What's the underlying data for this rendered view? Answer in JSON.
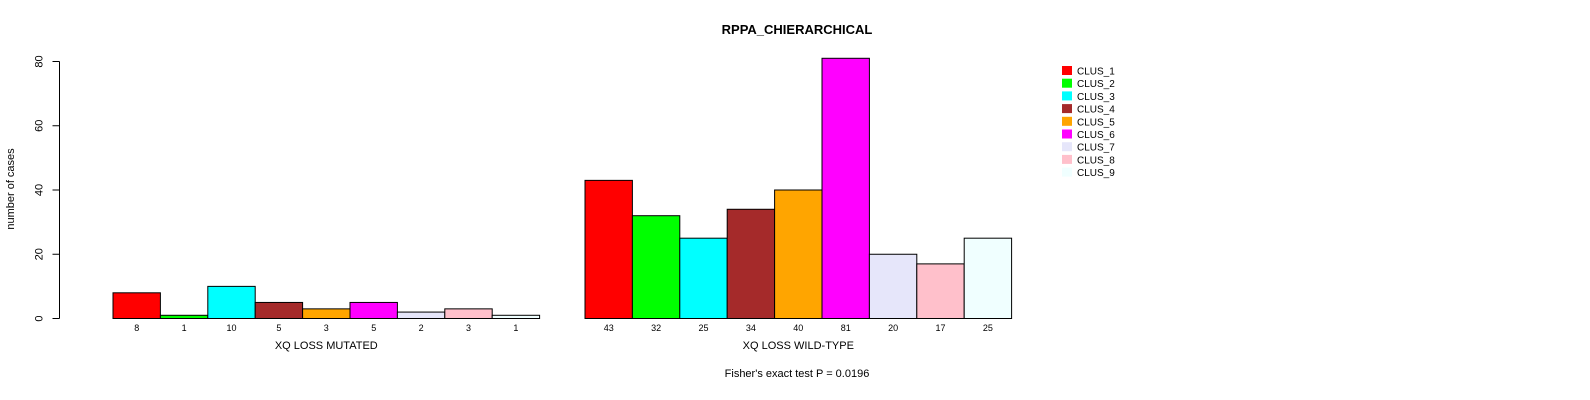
{
  "chart_data": {
    "type": "bar",
    "title": "RPPA_CHIERARCHICAL",
    "ylabel": "number of cases",
    "ylim": [
      0,
      80
    ],
    "yticks": [
      0,
      20,
      40,
      60,
      80
    ],
    "footnote": "Fisher's exact test P = 0.0196",
    "series": [
      {
        "name": "CLUS_1",
        "color": "#ff0000"
      },
      {
        "name": "CLUS_2",
        "color": "#00ff00"
      },
      {
        "name": "CLUS_3",
        "color": "#00ffff"
      },
      {
        "name": "CLUS_4",
        "color": "#a52a2a"
      },
      {
        "name": "CLUS_5",
        "color": "#ffa500"
      },
      {
        "name": "CLUS_6",
        "color": "#ff00ff"
      },
      {
        "name": "CLUS_7",
        "color": "#e6e6fa"
      },
      {
        "name": "CLUS_8",
        "color": "#ffc0cb"
      },
      {
        "name": "CLUS_9",
        "color": "#f0ffff"
      }
    ],
    "groups": [
      {
        "label": "XQ LOSS MUTATED",
        "values": [
          8,
          1,
          10,
          5,
          3,
          5,
          2,
          3,
          1
        ]
      },
      {
        "label": "XQ LOSS WILD-TYPE",
        "values": [
          43,
          32,
          25,
          34,
          40,
          81,
          20,
          17,
          25
        ]
      }
    ]
  }
}
